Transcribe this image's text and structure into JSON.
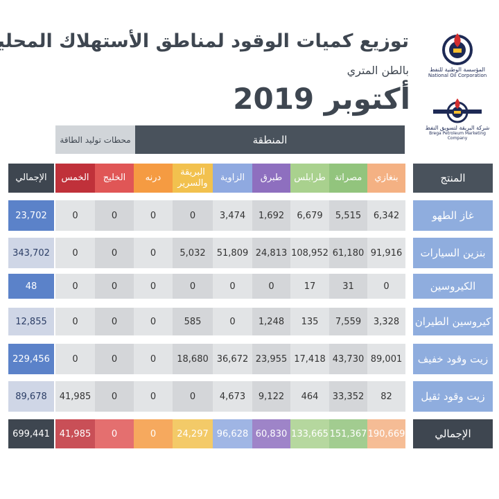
{
  "header": {
    "title": "توزيع كميات الوقود لمناطق الأستهلاك المحلية",
    "subtitle": "بالطن المتري",
    "date": "أكتوبر 2019"
  },
  "logos": {
    "noc": {
      "caption_ar": "المؤسسة الوطنية للنفط",
      "caption_en": "National Oil Corporation"
    },
    "brega": {
      "caption_ar": "شركة البريقة لتسويق النفط",
      "caption_en": "Brega Petroleum Marketing Company"
    }
  },
  "table": {
    "group_region": "المنطقة",
    "group_power": "محطات توليد الطاقة",
    "product_header": "المنتج",
    "columns": [
      "بنغازي",
      "مصراتة",
      "طرابلس",
      "طبرق",
      "الزاوية",
      "البريقة والسرير",
      "درنه",
      "الخليج",
      "الخمس",
      "الإجمالي"
    ],
    "column_colors": [
      "#f4b183",
      "#92c47d",
      "#a9d18e",
      "#8e6fbf",
      "#8fa9e0",
      "#f2c14e",
      "#f59b42",
      "#e05656",
      "#c0313a",
      "#3e4650"
    ],
    "rows": [
      {
        "product": "غاز الطهو",
        "values": [
          "6,342",
          "5,515",
          "6,679",
          "1,692",
          "3,474",
          "0",
          "0",
          "0",
          "0",
          "23,702"
        ]
      },
      {
        "product": "بنزين السيارات",
        "values": [
          "91,916",
          "61,180",
          "108,952",
          "24,813",
          "51,809",
          "5,032",
          "0",
          "0",
          "0",
          "343,702"
        ]
      },
      {
        "product": "الكيروسين",
        "values": [
          "0",
          "31",
          "17",
          "0",
          "0",
          "0",
          "0",
          "0",
          "0",
          "48"
        ]
      },
      {
        "product": "كيروسين الطيران",
        "values": [
          "3,328",
          "7,559",
          "135",
          "1,248",
          "0",
          "585",
          "0",
          "0",
          "0",
          "12,855"
        ]
      },
      {
        "product": "زيت وقود خفيف",
        "values": [
          "89,001",
          "43,730",
          "17,418",
          "23,955",
          "36,672",
          "18,680",
          "0",
          "0",
          "0",
          "229,456"
        ]
      },
      {
        "product": "زيت وقود ثقيل",
        "values": [
          "82",
          "33,352",
          "464",
          "9,122",
          "4,673",
          "0",
          "0",
          "0",
          "41,985",
          "89,678"
        ]
      }
    ],
    "total_row": {
      "product": "الإجمالي",
      "values": [
        "190,669",
        "151,367",
        "133,665",
        "60,830",
        "96,628",
        "24,297",
        "0",
        "0",
        "41,985",
        "699,441"
      ]
    }
  }
}
